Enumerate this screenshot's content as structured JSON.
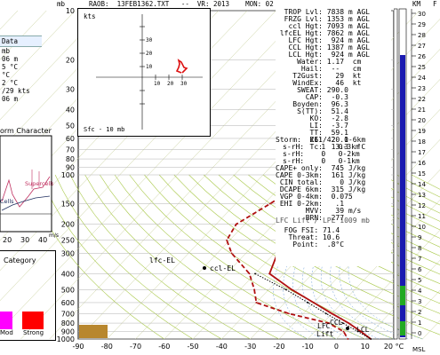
{
  "header": {
    "label_pressure_unit": "mb",
    "title": "RAOB:  13FEB1362.TXT   --  VR: 2013    MON: 02",
    "right_km": "KM",
    "right_ft": "F"
  },
  "data_panel": {
    "title": "Data",
    "rows": [
      "mb",
      "06 m",
      "5 °C",
      "°C",
      "2 °C",
      "",
      "/29 kts",
      "06 m"
    ]
  },
  "storm_panel": {
    "title": "orm Character",
    "supercells": "Supercells",
    "cells": "Cells",
    "axis_labels": [
      "20",
      "30",
      "40"
    ],
    "axis_unit": "m/s"
  },
  "category_panel": {
    "title": "Category",
    "boxes": [
      {
        "label": "Mod",
        "color": "#ff00ff"
      },
      {
        "label": "Strong",
        "color": "#ff0000"
      }
    ]
  },
  "hodograph": {
    "unit": "kts",
    "layer": "Sfc - 10 mb",
    "ticks_x": [
      "10",
      "20",
      "30"
    ],
    "ticks_y": [
      "10",
      "20",
      "30"
    ]
  },
  "params": {
    "left": [
      {
        "k": "TROP Lvl:",
        "v": " 7838 m AGL"
      },
      {
        "k": "FRZG Lvl:",
        "v": " 1353 m AGL"
      },
      {
        "k": "ccl Hgt:",
        "v": " 7093 m AGL"
      },
      {
        "k": "lfcEL Hgt:",
        "v": " 7862 m AGL"
      },
      {
        "k": "LFC Hgt:",
        "v": "  924 m AGL"
      },
      {
        "k": "CCL Hgt:",
        "v": " 1387 m AGL"
      },
      {
        "k": "LCL Hgt:",
        "v": "  924 m AGL"
      },
      {
        "k": "Water:",
        "v": " 1.17  cm"
      },
      {
        "k": "Hail:",
        "v": "  --   cm"
      },
      {
        "k": "T2Gust:",
        "v": "   29  kt"
      },
      {
        "k": "WindEx:",
        "v": "   46  kt"
      },
      {
        "k": "SWEAT:",
        "v": " 290.0"
      },
      {
        "k": "CAP:",
        "v": "  -0.3"
      },
      {
        "k": "Boyden:",
        "v": "  96.3"
      },
      {
        "k": "S(TT):",
        "v": "  51.4"
      },
      {
        "k": "KO:",
        "v": "  -2.8"
      },
      {
        "k": "LI:",
        "v": "  -3.7"
      },
      {
        "k": "TT:",
        "v": "  59.1"
      },
      {
        "k": "KI:",
        "v": "  20.1"
      },
      {
        "k": "Tc:",
        "v": "  13.3  °C"
      }
    ],
    "storm": "Storm:  261/42  0-6km",
    "srh": [
      "s-rH:    1   0-3km",
      "s-rH:    0   0-2km",
      "s-rH:    0   0-1km"
    ],
    "cape": [
      {
        "k": "CAPE+ only:",
        "v": "  745 J/kg"
      },
      {
        "k": "CAPE 0-3km:",
        "v": "  161 J/kg"
      },
      {
        "k": "CIN total:",
        "v": "    0 J/kg"
      },
      {
        "k": "DCAPE 6km:",
        "v": "  315 J/kg"
      },
      {
        "k": "VGP 0-4km:",
        "v": "  0.075"
      },
      {
        "k": "EHI 0-2km:",
        "v": "   .1"
      },
      {
        "k": "MVV:",
        "v": "   39 m/s"
      },
      {
        "k": "BRN:",
        "v": "  277"
      }
    ],
    "lift_note": "LFC Lift / LPL 1009 mb",
    "fog": [
      {
        "k": "FOG FSI:",
        "v": " 71.4"
      },
      {
        "k": "Threat:",
        "v": " 10.6"
      },
      {
        "k": "Point:",
        "v": "  .8°C"
      }
    ]
  },
  "chart_data": {
    "type": "line",
    "title": "",
    "xlabel": "°C",
    "ylabel": "mb",
    "x_ticks": [
      "-90",
      "-80",
      "-70",
      "-60",
      "-50",
      "-40",
      "-30",
      "-20",
      "-10",
      "0",
      "10",
      "20 °C"
    ],
    "xlim": [
      -90,
      20
    ],
    "pressure_ticks": [
      10,
      20,
      30,
      40,
      50,
      60,
      70,
      80,
      90,
      100,
      150,
      200,
      250,
      300,
      400,
      500,
      600,
      700,
      800,
      900,
      1000
    ],
    "ylim": [
      10,
      1000
    ],
    "y_scale": "log",
    "series": [
      {
        "name": "Temperature",
        "color": "#b01010",
        "style": "solid",
        "points": [
          [
            -48,
            60
          ],
          [
            -48,
            80
          ],
          [
            -50,
            100
          ],
          [
            -53,
            150
          ],
          [
            -52,
            200
          ],
          [
            -50,
            250
          ],
          [
            -49,
            300
          ],
          [
            -45,
            400
          ],
          [
            -32,
            500
          ],
          [
            -20,
            600
          ],
          [
            -10,
            700
          ],
          [
            -1,
            800
          ],
          [
            6,
            900
          ],
          [
            12,
            1000
          ]
        ]
      },
      {
        "name": "Dewpoint",
        "color": "#b01010",
        "style": "dashed",
        "points": [
          [
            -55,
            60
          ],
          [
            -62,
            100
          ],
          [
            -68,
            150
          ],
          [
            -73,
            200
          ],
          [
            -71,
            250
          ],
          [
            -65,
            300
          ],
          [
            -52,
            400
          ],
          [
            -45,
            500
          ],
          [
            -40,
            600
          ],
          [
            -25,
            700
          ],
          [
            -8,
            800
          ],
          [
            0,
            900
          ],
          [
            4,
            1000
          ]
        ]
      },
      {
        "name": "Parcel",
        "color": "#000000",
        "style": "dotted",
        "points": [
          [
            -50,
            400
          ],
          [
            -34,
            500
          ],
          [
            -22,
            600
          ],
          [
            -12,
            700
          ],
          [
            -3,
            800
          ],
          [
            5,
            900
          ],
          [
            12,
            1000
          ]
        ]
      }
    ],
    "annotations": [
      "ccl-EL",
      "lfc-EL",
      "LFC",
      "LCL",
      "CCL",
      "Lift"
    ]
  },
  "right_panel": {
    "km_ticks": [
      "30",
      "29",
      "28",
      "27",
      "26",
      "25",
      "24",
      "23",
      "22",
      "21",
      "20",
      "19",
      "18",
      "17",
      "16",
      "15",
      "14",
      "13",
      "12",
      "11",
      "10",
      "9",
      "8",
      "7",
      "6",
      "5",
      "4",
      "3",
      "2",
      "1",
      "0"
    ],
    "bottom": "MSL"
  }
}
